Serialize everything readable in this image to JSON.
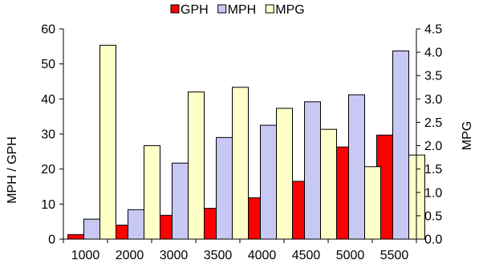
{
  "chart_data": {
    "type": "bar",
    "categories": [
      "1000",
      "2000",
      "3000",
      "3500",
      "4000",
      "4500",
      "5000",
      "5500"
    ],
    "series": [
      {
        "name": "GPH",
        "axis": "left",
        "color": "#ff0000",
        "values": [
          1.3,
          4.0,
          6.8,
          8.8,
          11.8,
          16.5,
          26.3,
          29.7
        ]
      },
      {
        "name": "MPH",
        "axis": "left",
        "color": "#c8c8f4",
        "values": [
          5.7,
          8.4,
          21.7,
          29.0,
          32.5,
          39.2,
          41.2,
          53.7
        ]
      },
      {
        "name": "MPG",
        "axis": "right",
        "color": "#ffffc8",
        "values": [
          4.15,
          2.0,
          3.15,
          3.25,
          2.8,
          2.35,
          1.55,
          1.8
        ]
      }
    ],
    "ylabel": "MPH / GPH",
    "y2label": "MPG",
    "ylim": [
      0,
      60
    ],
    "y2lim": [
      0,
      4.5
    ],
    "yticks": [
      "0",
      "10",
      "20",
      "30",
      "40",
      "50",
      "60"
    ],
    "y2ticks": [
      "0.0",
      "0.5",
      "1.0",
      "1.5",
      "2.0",
      "2.5",
      "3.0",
      "3.5",
      "4.0",
      "4.5"
    ],
    "legend": {
      "position": "top",
      "entries": [
        "GPH",
        "MPH",
        "MPG"
      ]
    },
    "grid": false
  }
}
